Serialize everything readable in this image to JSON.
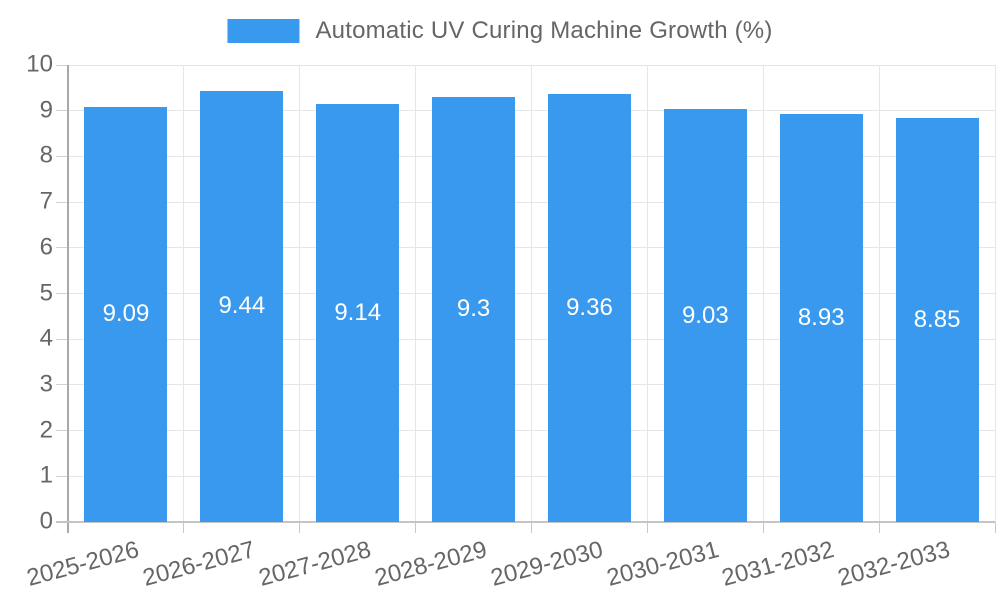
{
  "legend": {
    "label": "Automatic UV Curing Machine Growth (%)"
  },
  "chart_data": {
    "type": "bar",
    "title": "Automatic UV Curing Machine Growth (%)",
    "categories": [
      "2025-2026",
      "2026-2027",
      "2027-2028",
      "2028-2029",
      "2029-2030",
      "2030-2031",
      "2031-2032",
      "2032-2033"
    ],
    "values": [
      9.09,
      9.44,
      9.14,
      9.3,
      9.36,
      9.03,
      8.93,
      8.85
    ],
    "value_labels": [
      "9.09",
      "9.44",
      "9.14",
      "9.3",
      "9.36",
      "9.03",
      "8.93",
      "8.85"
    ],
    "xlabel": "",
    "ylabel": "",
    "ylim": [
      0,
      10
    ],
    "ytick_step": 1,
    "ytick_labels": [
      "0",
      "1",
      "2",
      "3",
      "4",
      "5",
      "6",
      "7",
      "8",
      "9",
      "10"
    ],
    "grid": true,
    "legend_position": "top",
    "x_label_rotation_deg": -15,
    "colors": {
      "bar": "#3999ee",
      "bar_value_text": "#ffffff",
      "axis_text": "#666666",
      "gridline": "#e6e6e6",
      "y_axis_line": "#a7a9ab",
      "x_axis_line": "#c2c4c6"
    }
  }
}
